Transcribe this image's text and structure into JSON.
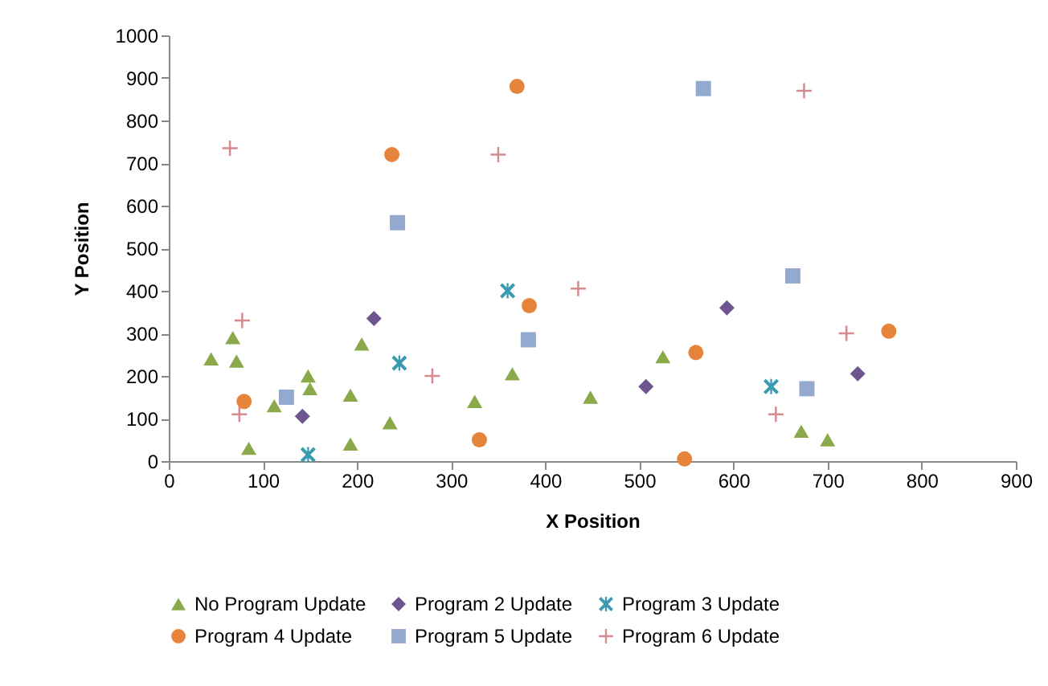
{
  "chart_data": {
    "type": "scatter",
    "xlabel": "X Position",
    "ylabel": "Y Position",
    "xlim": [
      0,
      900
    ],
    "xticks": [
      0,
      100,
      200,
      300,
      400,
      500,
      600,
      700,
      800,
      900
    ],
    "ylim": [
      0,
      1000
    ],
    "yticks": [
      0,
      100,
      200,
      300,
      400,
      500,
      600,
      700,
      800,
      900,
      1000
    ],
    "grid": false,
    "legend": "bottom",
    "series": [
      {
        "name": "No Program Update",
        "color": "#8aaa4a",
        "marker": "triangle",
        "x": [
          45,
          68,
          72,
          85,
          112,
          148,
          150,
          193,
          193,
          205,
          235,
          325,
          365,
          448,
          525,
          672,
          700
        ],
        "values": [
          240,
          290,
          235,
          30,
          130,
          200,
          170,
          155,
          40,
          275,
          90,
          140,
          205,
          150,
          245,
          70,
          50
        ]
      },
      {
        "name": "Program 2 Update",
        "color": "#6f558f",
        "marker": "diamond",
        "x": [
          142,
          218,
          507,
          593,
          732
        ],
        "values": [
          105,
          335,
          175,
          360,
          205
        ]
      },
      {
        "name": "Program 3 Update",
        "color": "#3a9bb0",
        "marker": "star",
        "x": [
          148,
          245,
          360,
          640
        ],
        "values": [
          15,
          230,
          400,
          175
        ]
      },
      {
        "name": "Program 4 Update",
        "color": "#e5843a",
        "marker": "circle",
        "x": [
          80,
          237,
          370,
          330,
          383,
          560,
          548,
          765
        ],
        "values": [
          140,
          720,
          880,
          50,
          365,
          255,
          5,
          305
        ]
      },
      {
        "name": "Program 5 Update",
        "color": "#93a9d0",
        "marker": "square",
        "x": [
          125,
          243,
          382,
          568,
          663,
          678
        ],
        "values": [
          150,
          560,
          285,
          875,
          435,
          170
        ]
      },
      {
        "name": "Program 6 Update",
        "color": "#d48a8e",
        "marker": "cross",
        "x": [
          65,
          78,
          75,
          350,
          280,
          435,
          675,
          720,
          645
        ],
        "values": [
          735,
          330,
          110,
          720,
          200,
          405,
          870,
          300,
          110
        ]
      }
    ]
  }
}
